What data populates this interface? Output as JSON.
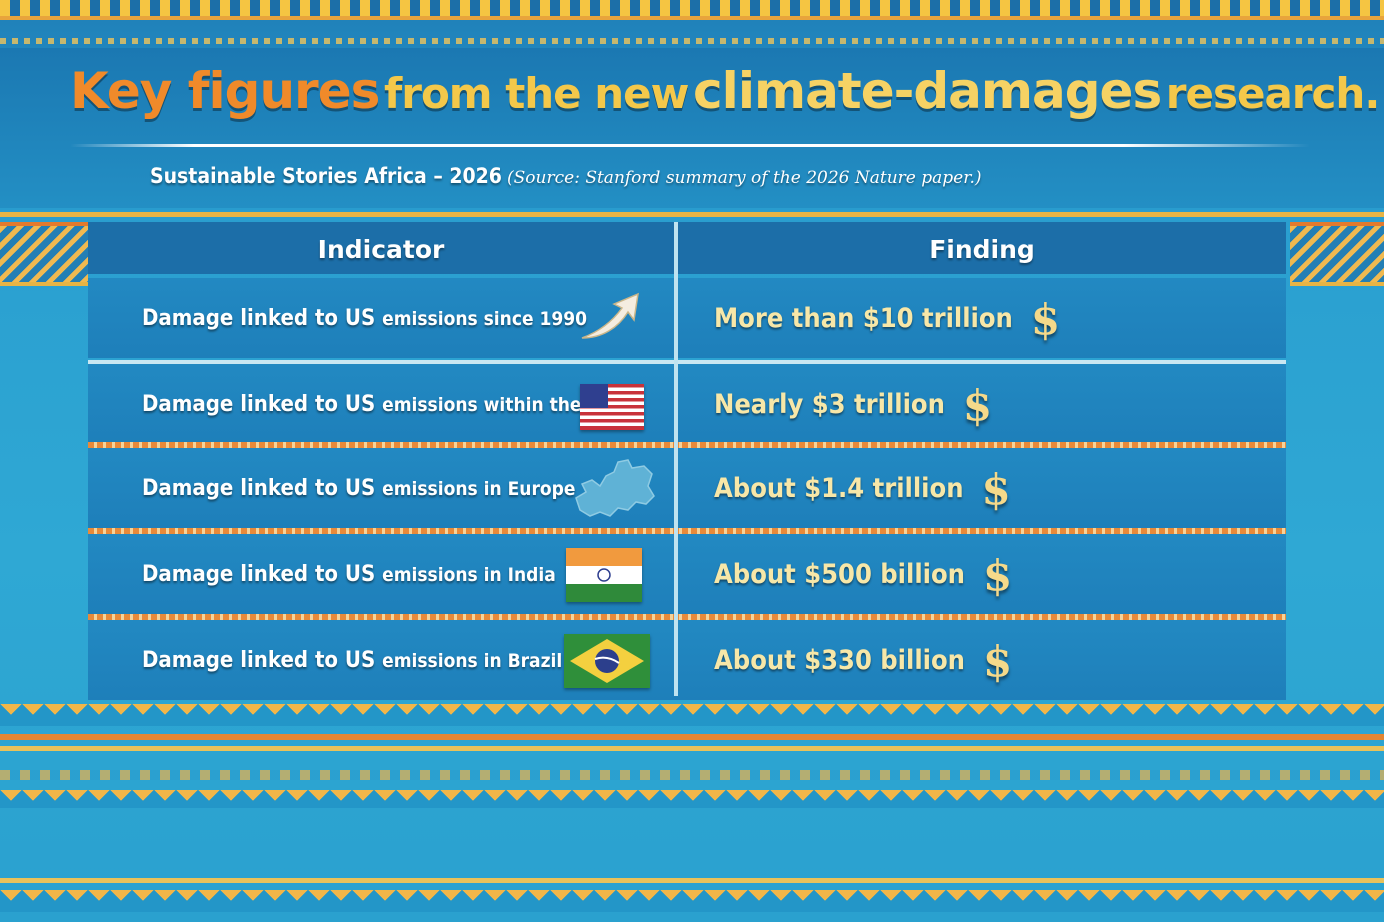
{
  "title": {
    "part1": "Key figures",
    "part2": "from the new",
    "part3": "climate-damages",
    "part4": "research."
  },
  "subtitle": {
    "org": "Sustainable Stories Africa – 2026",
    "source": "(Source: Stanford summary of the 2026 Nature paper.)"
  },
  "table": {
    "headers": [
      "Indicator",
      "Finding"
    ],
    "rows": [
      {
        "lead": "Damage linked to US ",
        "emph": "emissions since 1990",
        "finding": "More than $10 trillion",
        "icon": "trend-arrow-icon"
      },
      {
        "lead": "Damage linked to US ",
        "emph": "emissions within the US",
        "finding": "Nearly $3 trillion",
        "icon": "us-flag-icon"
      },
      {
        "lead": "Damage linked to US ",
        "emph": "emissions in Europe",
        "finding": "About $1.4 trillion",
        "icon": "europe-map-icon"
      },
      {
        "lead": "Damage linked to US ",
        "emph": "emissions in India",
        "finding": "About $500 billion",
        "icon": "india-flag-icon"
      },
      {
        "lead": "Damage linked to US ",
        "emph": "emissions in Brazil",
        "finding": "About $330 billion",
        "icon": "brazil-flag-icon"
      }
    ],
    "dollar_symbol": "$"
  },
  "colors": {
    "background": "#2aa1cf",
    "title_orange": "#f08a2a",
    "title_gold": "#f4c84a",
    "finding_text": "#f7e7a8",
    "accent_orange": "#e38632"
  }
}
